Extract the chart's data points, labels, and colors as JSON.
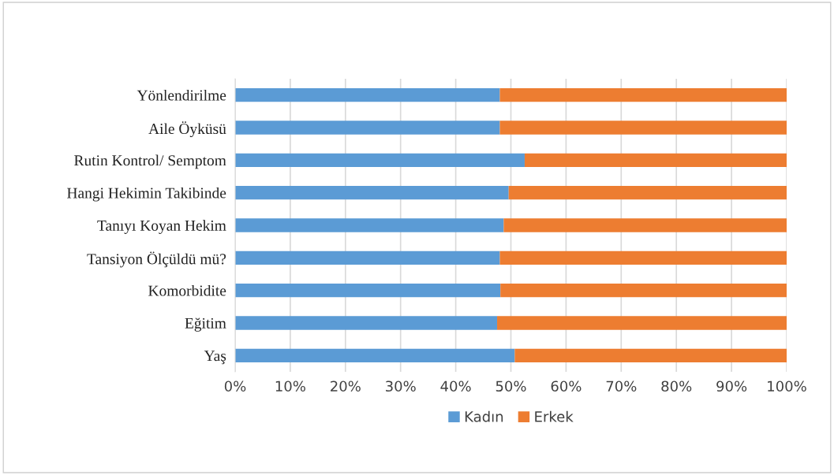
{
  "chart_data": {
    "type": "bar",
    "orientation": "horizontal",
    "stacked": true,
    "categories": [
      "Yönlendirilme",
      "Aile Öyküsü",
      "Rutin Kontrol/ Semptom",
      "Hangi Hekimin Takibinde",
      "Tanıyı Koyan Hekim",
      "Tansiyon Ölçüldü mü?",
      "Komorbidite",
      "Eğitim",
      "Yaş"
    ],
    "series": [
      {
        "name": "Kadın",
        "color": "#5b9bd5",
        "values": [
          48,
          48,
          52.5,
          49.6,
          48.7,
          48,
          48.1,
          47.5,
          50.7
        ]
      },
      {
        "name": "Erkek",
        "color": "#ed7d31",
        "values": [
          52,
          52,
          47.5,
          50.4,
          51.3,
          52,
          51.9,
          52.5,
          49.3
        ]
      }
    ],
    "xlim": [
      0,
      100
    ],
    "xticks": [
      {
        "value": 0,
        "label": "0%"
      },
      {
        "value": 10,
        "label": "10%"
      },
      {
        "value": 20,
        "label": "20%"
      },
      {
        "value": 30,
        "label": "30%"
      },
      {
        "value": 40,
        "label": "40%"
      },
      {
        "value": 50,
        "label": "50%"
      },
      {
        "value": 60,
        "label": "60%"
      },
      {
        "value": 70,
        "label": "70%"
      },
      {
        "value": 80,
        "label": "80%"
      },
      {
        "value": 90,
        "label": "90%"
      },
      {
        "value": 100,
        "label": "100%"
      }
    ],
    "grid": "x",
    "legend": "bottom"
  }
}
